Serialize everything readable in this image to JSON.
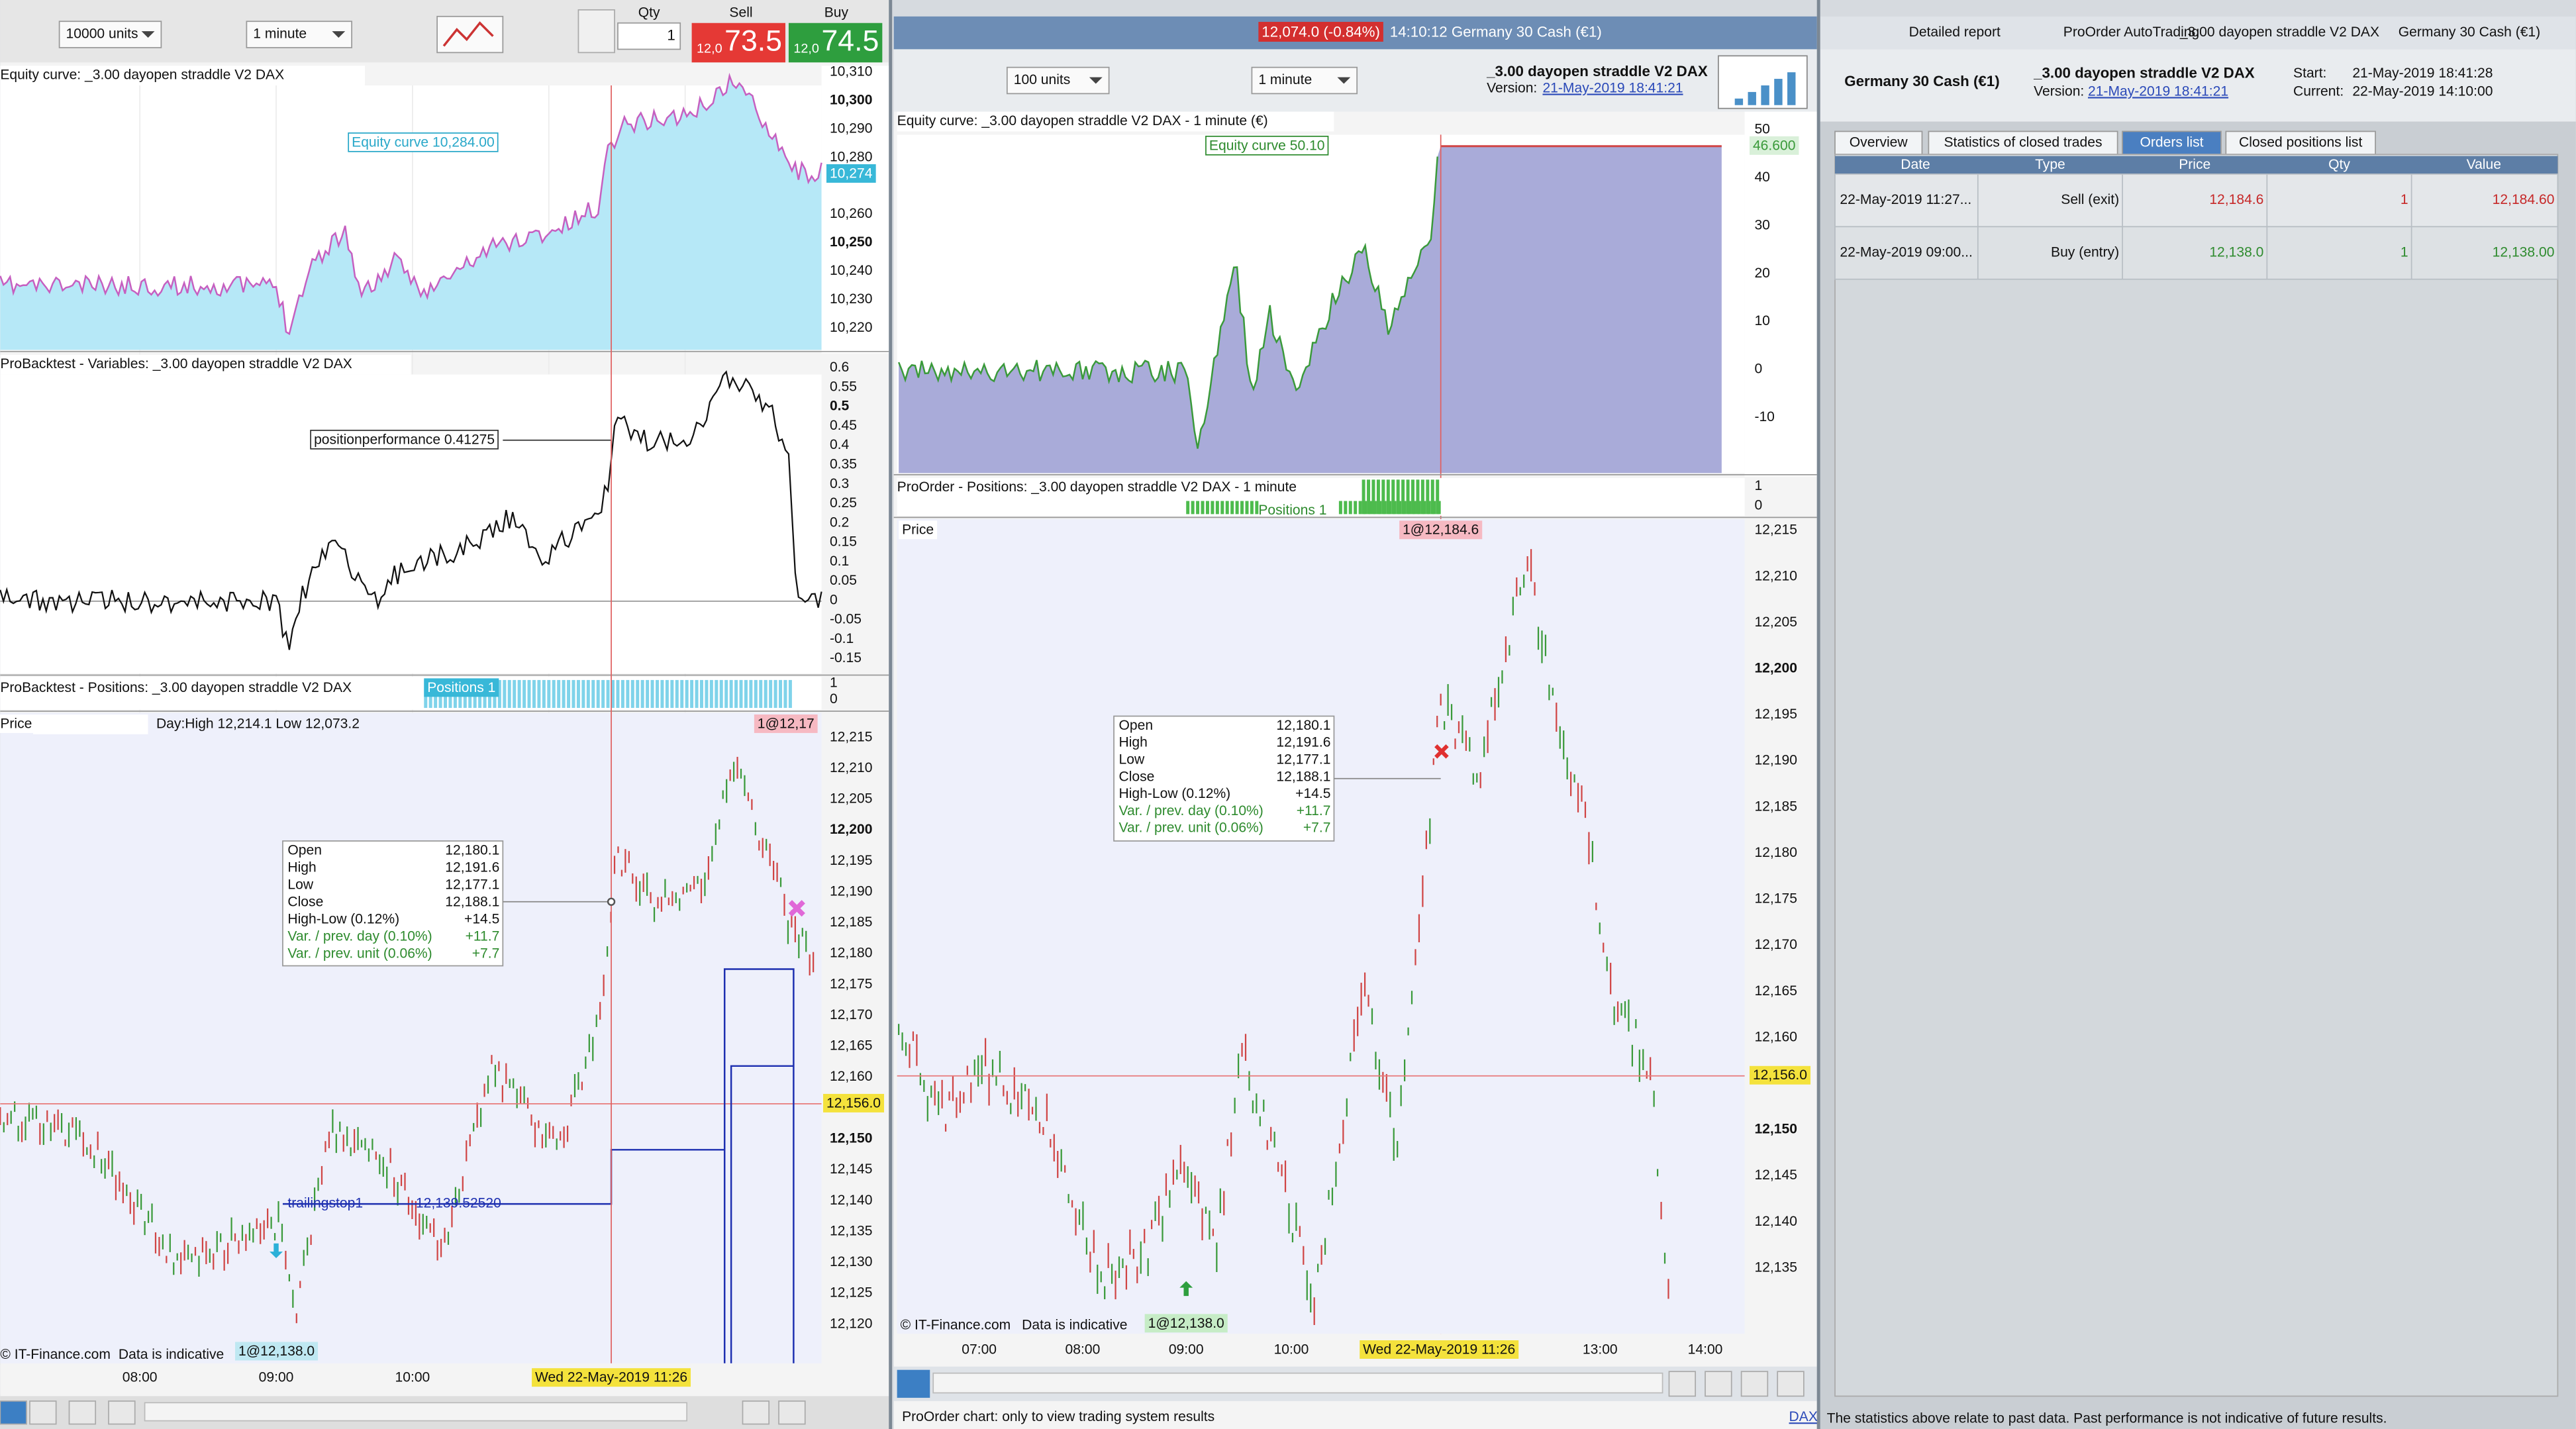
{
  "left": {
    "toolbar": {
      "units": "10000 units",
      "timeframe": "1 minute",
      "qty_label": "Qty",
      "qty": "1",
      "sell_label": "Sell",
      "buy_label": "Buy",
      "sell_small": "12,0",
      "sell": "73.5",
      "buy_small": "12,0",
      "buy": "74.5"
    },
    "equity": {
      "title": "Equity curve: _3.00 dayopen straddle V2 DAX",
      "label": "Equity curve  10,284.00",
      "axis": [
        "10,310",
        "10,300",
        "10,290",
        "10,280",
        "10,260",
        "10,250",
        "10,240",
        "10,230",
        "10,220"
      ],
      "last": "10,274"
    },
    "variables": {
      "title": "ProBacktest - Variables: _3.00 dayopen straddle V2 DAX",
      "label": "positionperformance  0.41275",
      "axis": [
        "0.6",
        "0.55",
        "0.5",
        "0.45",
        "0.4",
        "0.35",
        "0.3",
        "0.25",
        "0.2",
        "0.15",
        "0.1",
        "0.05",
        "0",
        "-0.05",
        "-0.1",
        "-0.15"
      ]
    },
    "positions": {
      "title": "ProBacktest - Positions: _3.00 dayopen straddle V2 DAX",
      "label": "Positions  1",
      "axis": [
        "1",
        "0"
      ]
    },
    "price": {
      "title": "Price",
      "day_info": "Day:High 12,214.1 Low 12,073.2",
      "marker": "1@12,17",
      "axis": [
        "12,215",
        "12,210",
        "12,205",
        "12,200",
        "12,195",
        "12,190",
        "12,185",
        "12,180",
        "12,175",
        "12,170",
        "12,165",
        "12,160",
        "12,150",
        "12,145",
        "12,140",
        "12,135",
        "12,130",
        "12,125",
        "12,120"
      ],
      "current": "12,156.0",
      "tooltip": [
        [
          "Open",
          "12,180.1"
        ],
        [
          "High",
          "12,191.6"
        ],
        [
          "Low",
          "12,177.1"
        ],
        [
          "Close",
          "12,188.1"
        ],
        [
          "High-Low (0.12%)",
          "+14.5"
        ],
        [
          "Var. / prev. day (0.10%)",
          "+11.7"
        ],
        [
          "Var. / prev. unit (0.06%)",
          "+7.7"
        ]
      ],
      "trailing": [
        "trailingstop1",
        "12,139.52520"
      ],
      "source": "© IT-Finance.com",
      "note": "Data is indicative",
      "entry": "1@12,138.0",
      "xaxis": [
        "08:00",
        "09:00",
        "10:00"
      ],
      "cursor_date": "Wed 22-May-2019 11:26"
    }
  },
  "middle": {
    "titlebar": {
      "quote": "12,074.0 (-0.84%)",
      "time_market": "14:10:12 Germany 30 Cash (€1)"
    },
    "toolbar": {
      "units": "100 units",
      "timeframe": "1 minute",
      "system": "_3.00 dayopen straddle V2 DAX",
      "version_label": "Version:",
      "version": "21-May-2019 18:41:21"
    },
    "equity": {
      "title": "Equity curve: _3.00 dayopen straddle V2 DAX - 1 minute (€)",
      "label": "Equity curve  50.10",
      "axis": [
        "50",
        "40",
        "30",
        "20",
        "10",
        "0",
        "-10"
      ],
      "last": "46.600"
    },
    "positions": {
      "title": "ProOrder - Positions: _3.00 dayopen straddle V2 DAX - 1 minute",
      "label": "Positions  1",
      "axis": [
        "1",
        "0"
      ]
    },
    "price": {
      "title": "Price",
      "marker": "1@12,184.6",
      "axis": [
        "12,215",
        "12,210",
        "12,205",
        "12,200",
        "12,195",
        "12,190",
        "12,185",
        "12,180",
        "12,175",
        "12,170",
        "12,165",
        "12,160",
        "12,150",
        "12,145",
        "12,140",
        "12,135"
      ],
      "current": "12,156.0",
      "tooltip": [
        [
          "Open",
          "12,180.1"
        ],
        [
          "High",
          "12,191.6"
        ],
        [
          "Low",
          "12,177.1"
        ],
        [
          "Close",
          "12,188.1"
        ],
        [
          "High-Low (0.12%)",
          "+14.5"
        ],
        [
          "Var. / prev. day (0.10%)",
          "+11.7"
        ],
        [
          "Var. / prev. unit (0.06%)",
          "+7.7"
        ]
      ],
      "source": "© IT-Finance.com",
      "note": "Data is indicative",
      "entry": "1@12,138.0",
      "xaxis": [
        "07:00",
        "08:00",
        "09:00",
        "10:00",
        "13:00",
        "14:00"
      ],
      "cursor_date": "Wed 22-May-2019 11:26"
    },
    "status": "ProOrder chart: only to view trading system results",
    "status_link": "DAX"
  },
  "right": {
    "titlebar": [
      "Detailed report",
      "ProOrder AutoTrading",
      "_3.00 dayopen straddle V2 DAX",
      "Germany 30 Cash (€1)"
    ],
    "header": {
      "market": "Germany 30 Cash (€1)",
      "system": "_3.00 dayopen straddle V2 DAX",
      "version_label": "Version:",
      "version": "21-May-2019 18:41:21",
      "start_label": "Start:",
      "start": "21-May-2019 18:41:28",
      "current_label": "Current:",
      "current": "22-May-2019 14:10:00"
    },
    "tabs": [
      "Overview",
      "Statistics of closed trades",
      "Orders list",
      "Closed positions list"
    ],
    "table": {
      "columns": [
        "Date",
        "Type",
        "Price",
        "Qty",
        "Value"
      ],
      "rows": [
        [
          "22-May-2019 11:27...",
          "Sell (exit)",
          "12,184.6",
          "1",
          "12,184.60"
        ],
        [
          "22-May-2019 09:00...",
          "Buy (entry)",
          "12,138.0",
          "1",
          "12,138.00"
        ]
      ]
    },
    "footer": "The statistics above relate to past data. Past performance is not indicative of future results."
  }
}
